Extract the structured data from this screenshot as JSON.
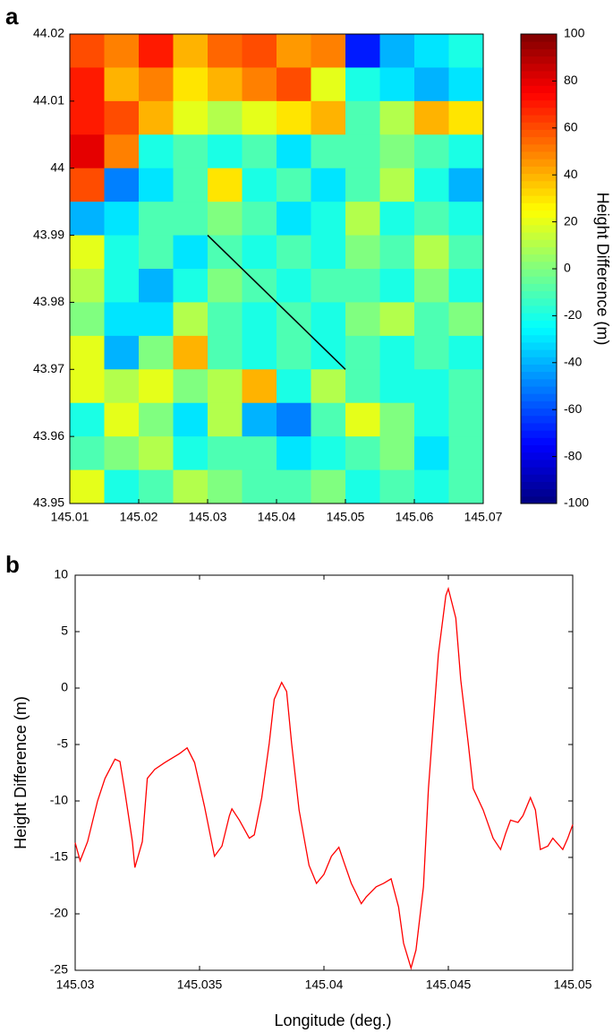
{
  "chart_data": [
    {
      "type": "heatmap",
      "panel_label": "a",
      "xlim": [
        145.01,
        145.07
      ],
      "xticks": [
        145.01,
        145.02,
        145.03,
        145.04,
        145.05,
        145.06,
        145.07
      ],
      "ylim": [
        43.95,
        44.02
      ],
      "yticks": [
        43.95,
        43.96,
        43.97,
        43.98,
        43.99,
        44,
        44.01,
        44.02
      ],
      "colormap": "jet",
      "zlim": [
        -100,
        100
      ],
      "zticks": [
        -100,
        -80,
        -60,
        -40,
        -20,
        0,
        20,
        40,
        60,
        80,
        100
      ],
      "colorbar_label": "Height Difference (m)",
      "z": [
        [
          60,
          50,
          70,
          40,
          55,
          60,
          45,
          50,
          -70,
          -40,
          -30,
          -20
        ],
        [
          70,
          40,
          50,
          30,
          40,
          50,
          60,
          20,
          -20,
          -30,
          -40,
          -30
        ],
        [
          70,
          60,
          40,
          20,
          10,
          20,
          30,
          40,
          -10,
          10,
          40,
          30
        ],
        [
          80,
          50,
          -20,
          -10,
          -20,
          -10,
          -30,
          -10,
          -10,
          0,
          -10,
          -20
        ],
        [
          60,
          -50,
          -30,
          -10,
          30,
          -20,
          -10,
          -30,
          -10,
          10,
          -20,
          -40
        ],
        [
          -40,
          -30,
          -10,
          -10,
          0,
          -10,
          -30,
          -20,
          10,
          -20,
          -10,
          -20
        ],
        [
          20,
          -20,
          -10,
          -30,
          -10,
          -20,
          -10,
          -20,
          0,
          -10,
          10,
          -10
        ],
        [
          10,
          -20,
          -40,
          -20,
          0,
          -10,
          -20,
          -10,
          -10,
          -20,
          0,
          -20
        ],
        [
          0,
          -30,
          -30,
          10,
          -10,
          -20,
          -10,
          -20,
          0,
          10,
          -10,
          0
        ],
        [
          20,
          -40,
          0,
          40,
          -10,
          -20,
          -10,
          -20,
          -10,
          -20,
          -10,
          -20
        ],
        [
          20,
          10,
          20,
          0,
          10,
          40,
          -20,
          10,
          -10,
          -20,
          -20,
          -10
        ],
        [
          -20,
          20,
          0,
          -30,
          10,
          -40,
          -50,
          -10,
          20,
          0,
          -20,
          -10
        ],
        [
          -10,
          0,
          10,
          -20,
          -10,
          -10,
          -30,
          -20,
          -10,
          0,
          -30,
          -10
        ],
        [
          20,
          -20,
          -10,
          10,
          0,
          -10,
          -10,
          0,
          -20,
          -10,
          -20,
          -10
        ]
      ],
      "profile_line": {
        "x": [
          145.03,
          145.05
        ],
        "y": [
          43.99,
          43.97
        ],
        "color": "#000000"
      }
    },
    {
      "type": "line",
      "panel_label": "b",
      "xlabel": "Longitude (deg.)",
      "ylabel": "Height Difference (m)",
      "xlim": [
        145.03,
        145.05
      ],
      "xticks": [
        145.03,
        145.035,
        145.04,
        145.045,
        145.05
      ],
      "ylim": [
        -25,
        10
      ],
      "yticks": [
        -25,
        -20,
        -15,
        -10,
        -5,
        0,
        5,
        10
      ],
      "color": "#ff0000",
      "x": [
        145.03,
        145.0302,
        145.0305,
        145.0309,
        145.0312,
        145.0316,
        145.0318,
        145.032,
        145.0323,
        145.0324,
        145.0327,
        145.0329,
        145.0332,
        145.0336,
        145.0342,
        145.0345,
        145.0348,
        145.0352,
        145.0356,
        145.0359,
        145.0362,
        145.0363,
        145.0366,
        145.037,
        145.0372,
        145.0375,
        145.0378,
        145.038,
        145.0383,
        145.0385,
        145.0387,
        145.039,
        145.0394,
        145.0397,
        145.04,
        145.0403,
        145.0406,
        145.0408,
        145.0411,
        145.0415,
        145.0417,
        145.0421,
        145.0424,
        145.0427,
        145.043,
        145.0432,
        145.0435,
        145.0437,
        145.044,
        145.0442,
        145.0446,
        145.0449,
        145.045,
        145.0453,
        145.0455,
        145.0458,
        145.046,
        145.0464,
        145.0468,
        145.0471,
        145.0473,
        145.0475,
        145.0478,
        145.048,
        145.0483,
        145.0485,
        145.0487,
        145.049,
        145.0492,
        145.0496,
        145.0498,
        145.05
      ],
      "values": [
        -13.7,
        -15.3,
        -13.6,
        -10,
        -8,
        -6.3,
        -6.5,
        -9.2,
        -13.6,
        -15.9,
        -13.6,
        -8,
        -7.2,
        -6.6,
        -5.8,
        -5.3,
        -6.6,
        -10.5,
        -14.9,
        -14,
        -11.3,
        -10.7,
        -11.7,
        -13.3,
        -13,
        -9.7,
        -4.9,
        -1,
        0.5,
        -0.3,
        -4.9,
        -10.8,
        -15.7,
        -17.3,
        -16.5,
        -14.9,
        -14.1,
        -15.4,
        -17.3,
        -19.1,
        -18.5,
        -17.6,
        -17.3,
        -16.9,
        -19.4,
        -22.6,
        -24.8,
        -23.2,
        -17.6,
        -8.9,
        3,
        8.2,
        8.8,
        6.2,
        0.7,
        -4.9,
        -8.9,
        -10.8,
        -13.3,
        -14.3,
        -12.9,
        -11.7,
        -11.9,
        -11.3,
        -9.7,
        -10.8,
        -14.3,
        -14,
        -13.3,
        -14.3,
        -13.3,
        -12.1
      ]
    }
  ]
}
